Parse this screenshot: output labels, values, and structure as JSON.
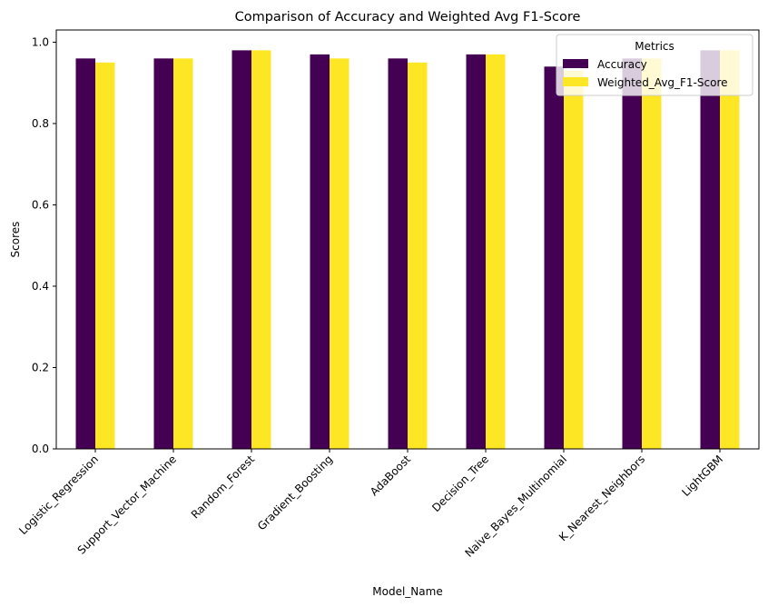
{
  "chart_data": {
    "type": "bar",
    "title": "Comparison of Accuracy and Weighted Avg F1-Score",
    "xlabel": "Model_Name",
    "ylabel": "Scores",
    "ylim": [
      0,
      1.03
    ],
    "yticks": [
      "0.0",
      "0.2",
      "0.4",
      "0.6",
      "0.8",
      "1.0"
    ],
    "categories": [
      "Logistic_Regression",
      "Support_Vector_Machine",
      "Random_Forest",
      "Gradient_Boosting",
      "AdaBoost",
      "Decision_Tree",
      "Naive_Bayes_Multinomial",
      "K_Nearest_Neighbors",
      "LightGBM"
    ],
    "series": [
      {
        "name": "Accuracy",
        "color": "#440154",
        "values": [
          0.96,
          0.96,
          0.98,
          0.97,
          0.96,
          0.97,
          0.94,
          0.96,
          0.98
        ]
      },
      {
        "name": "Weighted_Avg_F1-Score",
        "color": "#fde725",
        "values": [
          0.95,
          0.96,
          0.98,
          0.96,
          0.95,
          0.97,
          0.93,
          0.96,
          0.98
        ]
      }
    ],
    "legend": {
      "title": "Metrics",
      "position": "top-right"
    },
    "grid": false
  }
}
